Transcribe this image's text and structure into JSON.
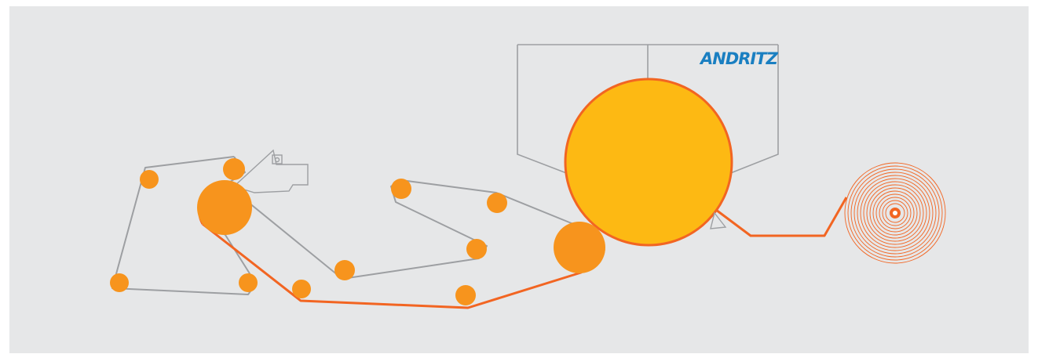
{
  "logo": {
    "text": "ANDRITZ",
    "color": "#1a7fc1"
  },
  "colors": {
    "background": "#e6e7e8",
    "frame": "#ffffff",
    "felt_line": "#9d9fa2",
    "roll_orange": "#f7941d",
    "dryer_yellow": "#fdb913",
    "paper_web": "#f26522",
    "reel": "#f26522"
  },
  "components": {
    "yankee_dryer": "yankee-dryer",
    "hood": "hood",
    "forming_roll": "forming-roll",
    "headbox": "headbox",
    "press_roll": "press-roll",
    "creping_doctor": "creping-doctor",
    "reel": "reel"
  }
}
